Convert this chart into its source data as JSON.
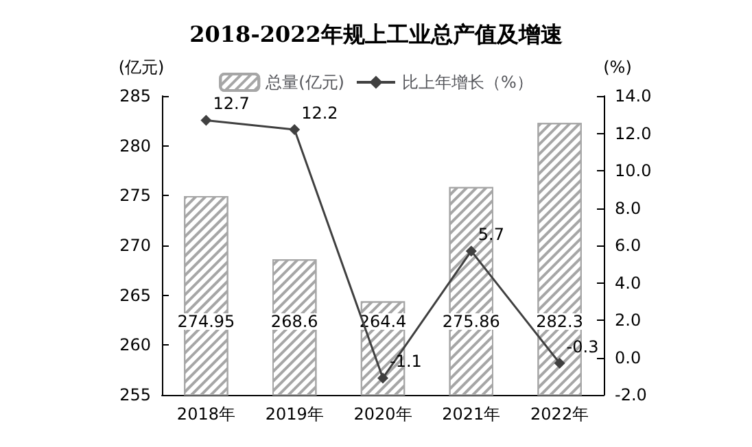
{
  "chart_data": {
    "type": "bar",
    "title": "2018-2022年规上工业总产值及增速",
    "categories": [
      "2018年",
      "2019年",
      "2020年",
      "2021年",
      "2022年"
    ],
    "series": [
      {
        "name": "总量(亿元)",
        "color": "#a6a6a6",
        "values": [
          274.95,
          268.6,
          264.4,
          275.86,
          282.3
        ]
      },
      {
        "name": "比上年增长（%）",
        "type": "line",
        "axis": "y2",
        "color": "#404040",
        "marker": "diamond",
        "values": [
          12.7,
          12.2,
          -1.1,
          5.7,
          -0.3
        ]
      }
    ],
    "ylabel": "(亿元)",
    "y2label": "(%)",
    "ylim": [
      255,
      285
    ],
    "yticks": [
      255,
      260,
      265,
      270,
      275,
      280,
      285
    ],
    "y2lim": [
      -2,
      14
    ],
    "y2ticks": [
      {
        "value": -2,
        "label": "-2.0"
      },
      {
        "value": 0,
        "label": "0.0"
      },
      {
        "value": 2,
        "label": "2.0"
      },
      {
        "value": 4,
        "label": "4.0"
      },
      {
        "value": 6,
        "label": "6.0"
      },
      {
        "value": 8,
        "label": "8.0"
      },
      {
        "value": 10,
        "label": "10.0"
      },
      {
        "value": 12,
        "label": "12.0"
      },
      {
        "value": 14,
        "label": "14.0"
      }
    ],
    "legend": "top",
    "data_labels": true
  }
}
